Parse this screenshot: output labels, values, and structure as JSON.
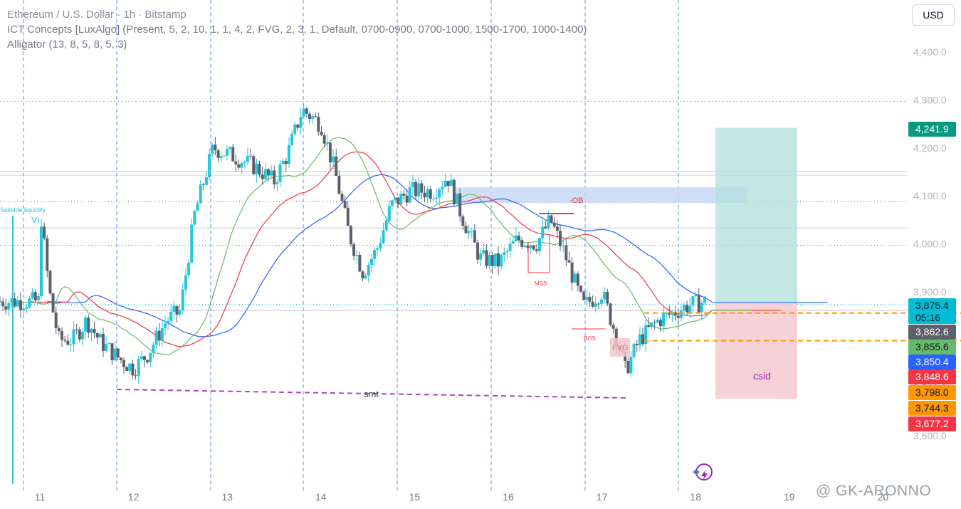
{
  "legend": {
    "title": "Ethereum / U.S. Dollar · 1h · Bitstamp",
    "indicator1": "ICT Concepts [LuxAlgo] (Present, 5, 2, 10, 1, 1, 4, 2, FVG, 2, 3, 1, Default, 0700-0900, 0700-1000, 1500-1700, 1000-1400)",
    "indicator2": "Alligator (13, 8, 5, 8, 5, 3)"
  },
  "currency_button": "USD",
  "watermark": "@ GK-ARONNO",
  "colors": {
    "up": "#26c6da",
    "down": "#5d606b",
    "jaw": "#2962ff",
    "teeth": "#f23645",
    "lips": "#66bb6a",
    "session_line": "#2962ff",
    "ob_zone": "#c5d6f5",
    "target_zone": "#b2dfdb",
    "stop_zone": "#f4c7cc",
    "level_line": "#ff9800",
    "smt_line": "#ab47bc"
  },
  "chart_data": {
    "type": "candlestick",
    "x_ticks": [
      "11",
      "12",
      "13",
      "14",
      "15",
      "16",
      "17",
      "18",
      "19",
      "20"
    ],
    "y_ticks": [
      "3,600.0",
      "3,700.0",
      "3,800.0",
      "3,900.0",
      "4,000.0",
      "4,100.0",
      "4,200.0",
      "4,300.0",
      "4,400.0"
    ],
    "ylim": [
      3585,
      4495
    ],
    "price_labels": [
      {
        "text": "4,241.9",
        "price": 4241.9,
        "bg": "#089981",
        "fg": "#ffffff"
      },
      {
        "text": "3,875.4",
        "sub": "05:16",
        "price": 3875.4,
        "bg": "#00bcd4",
        "fg": "#131722"
      },
      {
        "text": "3,862.6",
        "price": 3862.6,
        "bg": "#5d606b",
        "fg": "#ffffff"
      },
      {
        "text": "3,855.6",
        "price": 3855.6,
        "bg": "#66bb6a",
        "fg": "#131722"
      },
      {
        "text": "3,850.4",
        "price": 3850.4,
        "bg": "#2962ff",
        "fg": "#ffffff"
      },
      {
        "text": "3,848.6",
        "price": 3848.6,
        "bg": "#f23645",
        "fg": "#ffffff"
      },
      {
        "text": "3,798.0",
        "price": 3798.0,
        "bg": "#ff9800",
        "fg": "#131722"
      },
      {
        "text": "3,744.3",
        "price": 3744.3,
        "bg": "#ff9800",
        "fg": "#131722"
      },
      {
        "text": "3,677.2",
        "price": 3677.2,
        "bg": "#f23645",
        "fg": "#ffffff"
      }
    ],
    "annotations": {
      "ob": "-OB",
      "mss": "MSS",
      "bos": "BOS",
      "fvg": "FVG",
      "smt": "smt",
      "csid": "csid",
      "sellside": "Sellside liquidity",
      "vi": "VI"
    },
    "anchors": [
      [
        11.0,
        4080
      ],
      [
        11.1,
        3900
      ],
      [
        11.2,
        3800
      ],
      [
        11.35,
        3800
      ],
      [
        11.5,
        3840
      ],
      [
        11.65,
        3795
      ],
      [
        11.85,
        3760
      ],
      [
        12.0,
        3740
      ],
      [
        12.15,
        3770
      ],
      [
        12.35,
        3840
      ],
      [
        12.5,
        3860
      ],
      [
        12.65,
        4060
      ],
      [
        12.85,
        4200
      ],
      [
        13.1,
        4180
      ],
      [
        13.3,
        4160
      ],
      [
        13.5,
        4130
      ],
      [
        13.65,
        4190
      ],
      [
        13.8,
        4280
      ],
      [
        14.0,
        4250
      ],
      [
        14.15,
        4150
      ],
      [
        14.3,
        4020
      ],
      [
        14.45,
        3940
      ],
      [
        14.6,
        3990
      ],
      [
        14.75,
        4080
      ],
      [
        14.95,
        4110
      ],
      [
        15.2,
        4110
      ],
      [
        15.35,
        4140
      ],
      [
        15.5,
        4060
      ],
      [
        15.7,
        3970
      ],
      [
        15.9,
        3960
      ],
      [
        16.1,
        4010
      ],
      [
        16.3,
        4000
      ],
      [
        16.45,
        4050
      ],
      [
        16.6,
        3980
      ],
      [
        16.8,
        3870
      ],
      [
        17.0,
        3900
      ],
      [
        17.15,
        3810
      ],
      [
        17.25,
        3735
      ],
      [
        17.4,
        3800
      ],
      [
        17.6,
        3840
      ],
      [
        17.9,
        3870
      ],
      [
        18.1,
        3880
      ]
    ]
  }
}
